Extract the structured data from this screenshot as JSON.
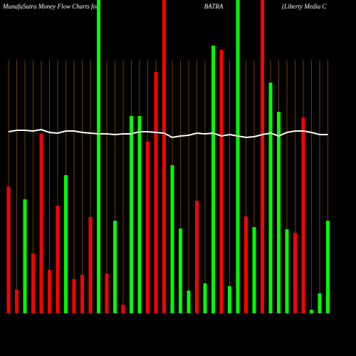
{
  "chart_data": {
    "type": "bar",
    "title_left": "MunafaSutra  Money Flow  Charts for",
    "title_center": "BATRA",
    "title_right": "(Liberty Media  C",
    "ylim": [
      0,
      440
    ],
    "series": [
      {
        "name": "Money Flow",
        "colors": [
          "#ff0000",
          "#ff0000",
          "#00ff00",
          "#ff0000",
          "#ff0000",
          "#ff0000",
          "#ff0000",
          "#00ff00",
          "#ff0000",
          "#ff0000",
          "#ff0000",
          "#00ff00",
          "#ff0000",
          "#00ff00",
          "#ff0000",
          "#00ff00",
          "#00ff00",
          "#ff0000",
          "#ff0000",
          "#ff0000",
          "#00ff00",
          "#00ff00",
          "#00ff00",
          "#ff0000",
          "#00ff00",
          "#00ff00",
          "#ff0000",
          "#00ff00",
          "#00ff00",
          "#ff0000",
          "#00ff00",
          "#ff0000",
          "#00ff00",
          "#00ff00",
          "#00ff00",
          "#ff0000",
          "#ff0000",
          "#00ff00",
          "#00ff00",
          "#00ff00"
        ],
        "values": [
          178,
          33,
          160,
          84,
          252,
          61,
          151,
          194,
          48,
          54,
          135,
          440,
          56,
          130,
          12,
          277,
          277,
          241,
          339,
          440,
          208,
          119,
          32,
          158,
          42,
          376,
          370,
          38,
          440,
          136,
          121,
          440,
          324,
          283,
          118,
          113,
          275,
          5,
          28,
          130
        ]
      },
      {
        "name": "MFI",
        "type": "line",
        "color": "#ffffff",
        "values": [
          255,
          257,
          257,
          256,
          258,
          254,
          253,
          256,
          256,
          254,
          253,
          252,
          252,
          251,
          252,
          252,
          255,
          255,
          254,
          253,
          247,
          249,
          250,
          253,
          252,
          253,
          249,
          251,
          249,
          247,
          248,
          251,
          253,
          249,
          254,
          256,
          256,
          254,
          251,
          251
        ]
      }
    ]
  }
}
